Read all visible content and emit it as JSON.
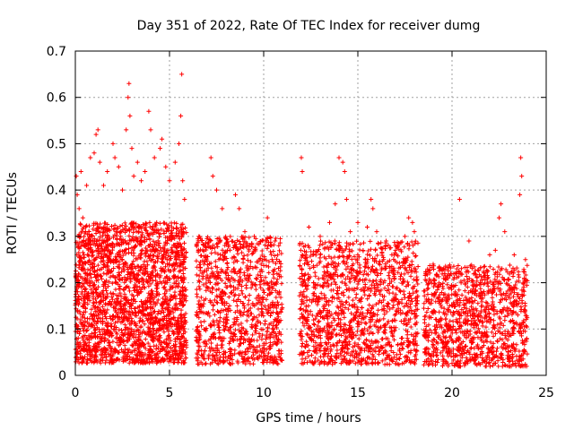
{
  "chart_data": {
    "type": "scatter",
    "title": "Day 351 of 2022, Rate Of TEC Index for receiver dumg",
    "xlabel": "GPS time / hours",
    "ylabel": "ROTI / TECUs",
    "xlim": [
      0,
      25
    ],
    "ylim": [
      0,
      0.7
    ],
    "x_ticks": [
      0,
      5,
      10,
      15,
      20,
      25
    ],
    "y_ticks": [
      0,
      0.1,
      0.2,
      0.3,
      0.4,
      0.5,
      0.6,
      0.7
    ],
    "x_tick_labels": [
      "0",
      "5",
      "10",
      "15",
      "20",
      "25"
    ],
    "y_tick_labels": [
      "0",
      "0.1",
      "0.2",
      "0.3",
      "0.4",
      "0.5",
      "0.6",
      "0.7"
    ],
    "grid": true,
    "marker": "plus",
    "color": "#ff0000",
    "series": [
      {
        "points": [
          [
            0.05,
            0.43
          ],
          [
            0.1,
            0.39
          ],
          [
            0.2,
            0.36
          ],
          [
            0.3,
            0.44
          ],
          [
            0.4,
            0.34
          ],
          [
            0.6,
            0.41
          ],
          [
            0.8,
            0.47
          ],
          [
            1.0,
            0.48
          ],
          [
            1.1,
            0.52
          ],
          [
            1.2,
            0.53
          ],
          [
            1.3,
            0.46
          ],
          [
            1.5,
            0.41
          ],
          [
            1.7,
            0.44
          ],
          [
            2.0,
            0.5
          ],
          [
            2.1,
            0.47
          ],
          [
            2.3,
            0.45
          ],
          [
            2.5,
            0.4
          ],
          [
            2.7,
            0.53
          ],
          [
            2.8,
            0.6
          ],
          [
            2.85,
            0.63
          ],
          [
            2.9,
            0.56
          ],
          [
            3.0,
            0.49
          ],
          [
            3.1,
            0.43
          ],
          [
            3.3,
            0.46
          ],
          [
            3.5,
            0.42
          ],
          [
            3.7,
            0.44
          ],
          [
            3.9,
            0.57
          ],
          [
            4.0,
            0.53
          ],
          [
            4.2,
            0.47
          ],
          [
            4.5,
            0.49
          ],
          [
            4.6,
            0.51
          ],
          [
            4.8,
            0.45
          ],
          [
            5.0,
            0.42
          ],
          [
            5.3,
            0.46
          ],
          [
            5.5,
            0.5
          ],
          [
            5.6,
            0.56
          ],
          [
            5.65,
            0.65
          ],
          [
            5.7,
            0.42
          ],
          [
            5.8,
            0.38
          ],
          [
            7.2,
            0.47
          ],
          [
            7.3,
            0.43
          ],
          [
            7.5,
            0.4
          ],
          [
            7.8,
            0.36
          ],
          [
            8.5,
            0.39
          ],
          [
            8.7,
            0.36
          ],
          [
            9.0,
            0.31
          ],
          [
            9.5,
            0.3
          ],
          [
            10.2,
            0.34
          ],
          [
            10.8,
            0.28
          ],
          [
            12.0,
            0.47
          ],
          [
            12.05,
            0.44
          ],
          [
            12.4,
            0.32
          ],
          [
            13.0,
            0.3
          ],
          [
            13.5,
            0.33
          ],
          [
            13.8,
            0.37
          ],
          [
            14.0,
            0.47
          ],
          [
            14.2,
            0.46
          ],
          [
            14.3,
            0.44
          ],
          [
            14.4,
            0.38
          ],
          [
            14.6,
            0.31
          ],
          [
            15.0,
            0.33
          ],
          [
            15.5,
            0.32
          ],
          [
            15.7,
            0.38
          ],
          [
            15.8,
            0.36
          ],
          [
            16.0,
            0.31
          ],
          [
            16.5,
            0.29
          ],
          [
            17.0,
            0.27
          ],
          [
            17.5,
            0.3
          ],
          [
            17.7,
            0.34
          ],
          [
            17.9,
            0.33
          ],
          [
            18.0,
            0.31
          ],
          [
            18.6,
            0.22
          ],
          [
            19.0,
            0.24
          ],
          [
            19.4,
            0.23
          ],
          [
            19.8,
            0.21
          ],
          [
            20.2,
            0.22
          ],
          [
            20.4,
            0.38
          ],
          [
            20.9,
            0.29
          ],
          [
            21.2,
            0.22
          ],
          [
            21.5,
            0.2
          ],
          [
            22.0,
            0.26
          ],
          [
            22.3,
            0.27
          ],
          [
            22.5,
            0.34
          ],
          [
            22.6,
            0.37
          ],
          [
            22.8,
            0.31
          ],
          [
            23.3,
            0.26
          ],
          [
            23.6,
            0.39
          ],
          [
            23.65,
            0.47
          ],
          [
            23.7,
            0.43
          ],
          [
            23.9,
            0.25
          ]
        ]
      }
    ],
    "dense_bands": [
      {
        "x": [
          0.0,
          5.9
        ],
        "y": [
          0.0,
          0.33
        ],
        "count": 2200
      },
      {
        "x": [
          6.4,
          11.0
        ],
        "y": [
          0.0,
          0.3
        ],
        "count": 1000
      },
      {
        "x": [
          11.9,
          18.2
        ],
        "y": [
          0.0,
          0.29
        ],
        "count": 1300
      },
      {
        "x": [
          18.5,
          24.0
        ],
        "y": [
          0.0,
          0.24
        ],
        "count": 1100
      }
    ]
  }
}
